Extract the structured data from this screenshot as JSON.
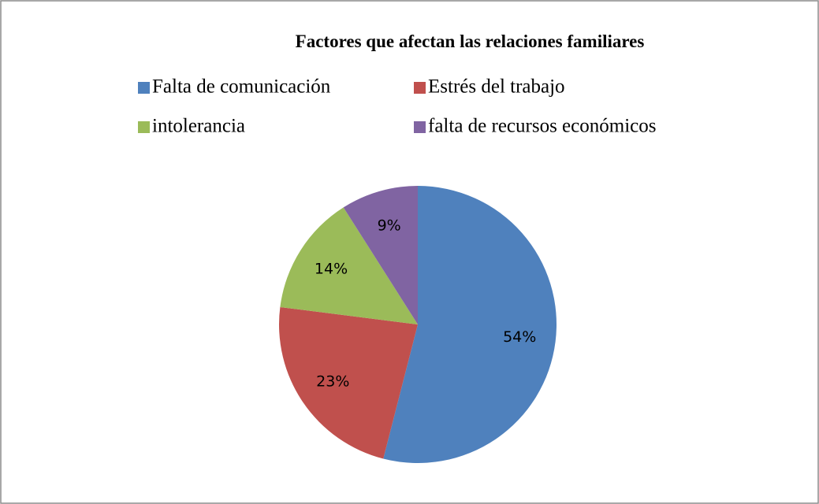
{
  "chart_data": {
    "type": "pie",
    "title": "Factores que afectan las relaciones familiares",
    "categories": [
      "Falta de comunicación",
      "Estrés del trabajo",
      "intolerancia",
      "falta de recursos económicos"
    ],
    "values": [
      54,
      23,
      14,
      9
    ],
    "value_labels": [
      "54%",
      "23%",
      "14%",
      "9%"
    ],
    "colors": [
      "#4f81bd",
      "#c0504d",
      "#9bbb59",
      "#8064a2"
    ],
    "legend": "top"
  }
}
